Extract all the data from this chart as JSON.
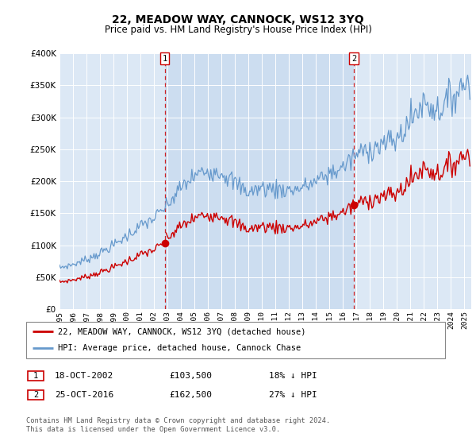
{
  "title": "22, MEADOW WAY, CANNOCK, WS12 3YQ",
  "subtitle": "Price paid vs. HM Land Registry's House Price Index (HPI)",
  "property_label": "22, MEADOW WAY, CANNOCK, WS12 3YQ (detached house)",
  "hpi_label": "HPI: Average price, detached house, Cannock Chase",
  "footnote": "Contains HM Land Registry data © Crown copyright and database right 2024.\nThis data is licensed under the Open Government Licence v3.0.",
  "transactions": [
    {
      "num": 1,
      "date": "18-OCT-2002",
      "price": 103500,
      "hpi_diff": "18% ↓ HPI",
      "year": 2002.8
    },
    {
      "num": 2,
      "date": "25-OCT-2016",
      "price": 162500,
      "hpi_diff": "27% ↓ HPI",
      "year": 2016.8
    }
  ],
  "property_color": "#cc0000",
  "hpi_color": "#6699cc",
  "plot_bg_color": "#dce8f5",
  "highlight_color": "#ccddf0",
  "fig_bg_color": "#f0f0f0",
  "ylim": [
    0,
    400000
  ],
  "xlim_start": 1995,
  "xlim_end": 2025.5,
  "yticks": [
    0,
    50000,
    100000,
    150000,
    200000,
    250000,
    300000,
    350000,
    400000
  ],
  "xticks": [
    1995,
    1996,
    1997,
    1998,
    1999,
    2000,
    2001,
    2002,
    2003,
    2004,
    2005,
    2006,
    2007,
    2008,
    2009,
    2010,
    2011,
    2012,
    2013,
    2014,
    2015,
    2016,
    2017,
    2018,
    2019,
    2020,
    2021,
    2022,
    2023,
    2024,
    2025
  ]
}
